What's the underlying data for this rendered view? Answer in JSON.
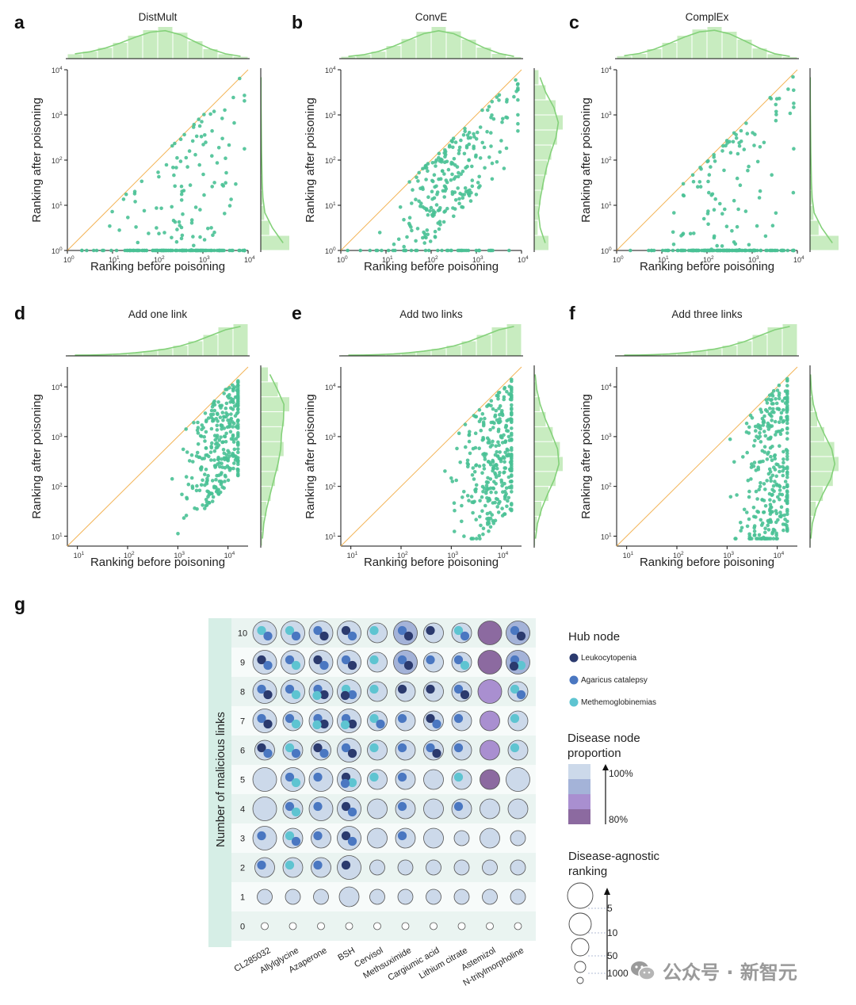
{
  "watermark": "公众号 · 新智元",
  "chart_data": [
    {
      "id": "a",
      "type": "scatter",
      "panel_letter": "a",
      "title": "DistMult",
      "xlabel": "Ranking before poisoning",
      "ylabel": "Ranking after poisoning",
      "xlim": [
        0,
        4
      ],
      "ylim": [
        0,
        4
      ],
      "log": true,
      "xticks": [
        "10",
        "10",
        "10",
        "10",
        "10"
      ],
      "xtick_exp": [
        "0",
        "1",
        "2",
        "3",
        "4"
      ],
      "yticks": [
        "10",
        "10",
        "10",
        "10",
        "10"
      ],
      "ytick_exp": [
        "0",
        "1",
        "2",
        "3",
        "4"
      ],
      "n_points": 230,
      "x_mean": 2.5,
      "x_sd": 0.75,
      "floor_fraction": 0.45,
      "max_gain": 3.0,
      "gain_exponent": 1.5,
      "top_histogram": [
        0.14,
        0.22,
        0.34,
        0.5,
        0.72,
        0.9,
        1.0,
        0.82,
        0.55,
        0.3,
        0.14,
        0.06
      ],
      "right_histogram": [
        1.0,
        0.3,
        0.12,
        0.07,
        0.05,
        0.04,
        0.03,
        0.02,
        0.02,
        0.01,
        0.01,
        0.01
      ]
    },
    {
      "id": "b",
      "type": "scatter",
      "panel_letter": "b",
      "title": "ConvE",
      "xlabel": "Ranking before poisoning",
      "ylabel": "Ranking after poisoning",
      "xlim": [
        0,
        4
      ],
      "ylim": [
        0,
        4
      ],
      "log": true,
      "xticks": [
        "10",
        "10",
        "10",
        "10",
        "10"
      ],
      "xtick_exp": [
        "0",
        "1",
        "2",
        "3",
        "4"
      ],
      "yticks": [
        "10",
        "10",
        "10",
        "10",
        "10"
      ],
      "ytick_exp": [
        "0",
        "1",
        "2",
        "3",
        "4"
      ],
      "n_points": 280,
      "x_mean": 2.4,
      "x_sd": 0.7,
      "floor_fraction": 0.12,
      "max_gain": 1.8,
      "gain_exponent": 1.0,
      "top_histogram": [
        0.06,
        0.12,
        0.22,
        0.4,
        0.62,
        0.85,
        1.0,
        0.86,
        0.6,
        0.35,
        0.15,
        0.05
      ],
      "right_histogram": [
        0.5,
        0.12,
        0.14,
        0.22,
        0.33,
        0.45,
        0.6,
        0.8,
        1.0,
        0.75,
        0.4,
        0.15
      ]
    },
    {
      "id": "c",
      "type": "scatter",
      "panel_letter": "c",
      "title": "ComplEx",
      "xlabel": "Ranking before poisoning",
      "ylabel": "Ranking after poisoning",
      "xlim": [
        0,
        4
      ],
      "ylim": [
        0,
        4
      ],
      "log": true,
      "xticks": [
        "10",
        "10",
        "10",
        "10",
        "10"
      ],
      "xtick_exp": [
        "0",
        "1",
        "2",
        "3",
        "4"
      ],
      "yticks": [
        "10",
        "10",
        "10",
        "10",
        "10"
      ],
      "ytick_exp": [
        "0",
        "1",
        "2",
        "3",
        "4"
      ],
      "n_points": 240,
      "x_mean": 2.5,
      "x_sd": 0.7,
      "floor_fraction": 0.5,
      "max_gain": 3.0,
      "gain_exponent": 1.6,
      "top_histogram": [
        0.08,
        0.15,
        0.3,
        0.5,
        0.72,
        0.92,
        1.0,
        0.85,
        0.6,
        0.32,
        0.14,
        0.05
      ],
      "right_histogram": [
        1.0,
        0.3,
        0.12,
        0.07,
        0.05,
        0.04,
        0.03,
        0.02,
        0.02,
        0.01,
        0.01,
        0.01
      ]
    },
    {
      "id": "d",
      "type": "scatter",
      "panel_letter": "d",
      "title": "Add one link",
      "xlabel": "Ranking before poisoning",
      "ylabel": "Ranking after poisoning",
      "xlim": [
        0.8,
        4.4
      ],
      "ylim": [
        0.8,
        4.4
      ],
      "log": true,
      "xticks": [
        "10",
        "10",
        "10",
        "10"
      ],
      "xtick_exp": [
        "1",
        "2",
        "3",
        "4"
      ],
      "yticks": [
        "10",
        "10",
        "10",
        "10"
      ],
      "ytick_exp": [
        "1",
        "2",
        "3",
        "4"
      ],
      "n_points": 320,
      "x_mean": 3.9,
      "x_sd": 0.35,
      "floor_fraction": 0,
      "max_gain": 2.0,
      "gain_exponent": 1.0,
      "top_histogram": [
        0.02,
        0.03,
        0.04,
        0.06,
        0.1,
        0.15,
        0.22,
        0.32,
        0.46,
        0.66,
        0.9,
        1.0
      ],
      "right_histogram": [
        0.05,
        0.1,
        0.2,
        0.35,
        0.5,
        0.62,
        0.8,
        0.72,
        0.82,
        1.0,
        0.6,
        0.25
      ]
    },
    {
      "id": "e",
      "type": "scatter",
      "panel_letter": "e",
      "title": "Add two links",
      "xlabel": "Ranking before poisoning",
      "ylabel": "Ranking after poisoning",
      "xlim": [
        0.8,
        4.4
      ],
      "ylim": [
        0.8,
        4.4
      ],
      "log": true,
      "xticks": [
        "10",
        "10",
        "10",
        "10"
      ],
      "xtick_exp": [
        "1",
        "2",
        "3",
        "4"
      ],
      "yticks": [
        "10",
        "10",
        "10",
        "10"
      ],
      "ytick_exp": [
        "1",
        "2",
        "3",
        "4"
      ],
      "n_points": 330,
      "x_mean": 3.9,
      "x_sd": 0.35,
      "floor_fraction": 0,
      "max_gain": 2.7,
      "gain_exponent": 1.0,
      "top_histogram": [
        0.02,
        0.03,
        0.04,
        0.06,
        0.1,
        0.15,
        0.22,
        0.32,
        0.46,
        0.66,
        0.9,
        1.0
      ],
      "right_histogram": [
        0.03,
        0.1,
        0.25,
        0.5,
        0.75,
        1.0,
        0.9,
        0.65,
        0.4,
        0.2,
        0.08,
        0.02
      ]
    },
    {
      "id": "f",
      "type": "scatter",
      "panel_letter": "f",
      "title": "Add three links",
      "xlabel": "Ranking before poisoning",
      "ylabel": "Ranking after poisoning",
      "xlim": [
        0.8,
        4.4
      ],
      "ylim": [
        0.8,
        4.4
      ],
      "log": true,
      "xticks": [
        "10",
        "10",
        "10",
        "10"
      ],
      "xtick_exp": [
        "1",
        "2",
        "3",
        "4"
      ],
      "yticks": [
        "10",
        "10",
        "10",
        "10"
      ],
      "ytick_exp": [
        "1",
        "2",
        "3",
        "4"
      ],
      "n_points": 330,
      "x_mean": 3.9,
      "x_sd": 0.35,
      "floor_fraction": 0,
      "max_gain": 3.1,
      "gain_exponent": 1.0,
      "top_histogram": [
        0.02,
        0.03,
        0.04,
        0.06,
        0.1,
        0.15,
        0.22,
        0.32,
        0.46,
        0.66,
        0.9,
        1.0
      ],
      "right_histogram": [
        0.02,
        0.06,
        0.2,
        0.45,
        0.8,
        1.0,
        0.85,
        0.5,
        0.25,
        0.1,
        0.04,
        0.01
      ]
    },
    {
      "id": "g",
      "type": "bubble_matrix",
      "panel_letter": "g",
      "ylabel": "Number of malicious links",
      "rows": [
        "10",
        "9",
        "8",
        "7",
        "6",
        "5",
        "4",
        "3",
        "2",
        "1",
        "0"
      ],
      "columns": [
        "CL285032",
        "Allylglycine",
        "Azaperone",
        "BSH",
        "Cervisol",
        "Methsuximide",
        "Cargiumic acid",
        "Lithium citrate",
        "Astemizol",
        "N-tritylmorpholine"
      ],
      "size_grid": [
        [
          4,
          4,
          4,
          4,
          3,
          4,
          3,
          3,
          4,
          4
        ],
        [
          4,
          4,
          4,
          4,
          3,
          4,
          3,
          3,
          4,
          4
        ],
        [
          4,
          4,
          4,
          4,
          3,
          3,
          3,
          3,
          4,
          3
        ],
        [
          4,
          3,
          4,
          4,
          3,
          3,
          3,
          3,
          3,
          3
        ],
        [
          3,
          3,
          3,
          4,
          3,
          3,
          3,
          3,
          3,
          3
        ],
        [
          4,
          4,
          4,
          4,
          3,
          3,
          3,
          3,
          3,
          4
        ],
        [
          4,
          3,
          4,
          4,
          3,
          3,
          3,
          3,
          3,
          3
        ],
        [
          4,
          3,
          3,
          4,
          3,
          3,
          3,
          2,
          3,
          2
        ],
        [
          3,
          3,
          3,
          4,
          2,
          2,
          2,
          2,
          2,
          2
        ],
        [
          2,
          2,
          2,
          3,
          2,
          2,
          2,
          2,
          2,
          2
        ],
        [
          0,
          0,
          0,
          0,
          0,
          0,
          0,
          0,
          0,
          0
        ]
      ],
      "proportion_grid": [
        [
          0,
          0,
          0,
          0,
          0,
          1,
          0,
          0,
          3,
          1
        ],
        [
          0,
          0,
          0,
          0,
          0,
          1,
          0,
          0,
          3,
          1
        ],
        [
          0,
          0,
          0,
          0,
          0,
          0,
          0,
          0,
          2,
          0
        ],
        [
          0,
          0,
          0,
          0,
          0,
          0,
          0,
          0,
          2,
          0
        ],
        [
          0,
          0,
          0,
          0,
          0,
          0,
          0,
          0,
          2,
          0
        ],
        [
          0,
          0,
          0,
          0,
          0,
          0,
          0,
          0,
          3,
          0
        ],
        [
          0,
          0,
          0,
          0,
          0,
          0,
          0,
          0,
          0,
          0
        ],
        [
          0,
          0,
          0,
          0,
          0,
          0,
          0,
          0,
          0,
          0
        ],
        [
          0,
          0,
          0,
          0,
          0,
          0,
          0,
          0,
          0,
          0
        ],
        [
          0,
          0,
          0,
          0,
          0,
          0,
          0,
          0,
          0,
          0
        ],
        [
          0,
          0,
          0,
          0,
          0,
          0,
          0,
          0,
          0,
          0
        ]
      ],
      "hub_grid": [
        [
          "MA",
          "MA",
          "AL",
          "LA",
          "M",
          "AL",
          "L",
          "MA",
          "",
          "AL"
        ],
        [
          "LA",
          "AM",
          "LA",
          "AL",
          "M",
          "AL",
          "A",
          "AM",
          "",
          "AML"
        ],
        [
          "AL",
          "AM",
          "ALM",
          "MAL",
          "M",
          "L",
          "L",
          "AL",
          "",
          "MA"
        ],
        [
          "AL",
          "AM",
          "ALM",
          "ALM",
          "MA",
          "A",
          "LA",
          "A",
          "",
          "M"
        ],
        [
          "LA",
          "MA",
          "LA",
          "AL",
          "M",
          "A",
          "AL",
          "A",
          "",
          "M"
        ],
        [
          "",
          "AM",
          "A",
          "LMA",
          "M",
          "A",
          "",
          "M",
          "",
          ""
        ],
        [
          "",
          "AM",
          "A",
          "LA",
          "",
          "A",
          "",
          "A",
          "",
          ""
        ],
        [
          "A",
          "MA",
          "A",
          "LA",
          "",
          "A",
          "",
          "",
          "",
          ""
        ],
        [
          "A",
          "M",
          "A",
          "L",
          "",
          "",
          "",
          "",
          "",
          ""
        ],
        [
          "",
          "",
          "",
          "",
          "",
          "",
          "",
          "",
          "",
          ""
        ],
        [
          "",
          "",
          "",
          "",
          "",
          "",
          "",
          "",
          "",
          ""
        ]
      ],
      "hub_legend": {
        "title": "Hub node",
        "items": [
          {
            "label": "Leukocytopenia",
            "color": "#2b3a6e"
          },
          {
            "label": "Agaricus catalepsy",
            "color": "#4a77c1"
          },
          {
            "label": "Methemoglobinemias",
            "color": "#5ec4d1"
          }
        ]
      },
      "proportion_legend": {
        "title_line1": "Disease node",
        "title_line2": "proportion",
        "labels": [
          "100%",
          "80%"
        ],
        "colors": [
          "#ccd9ea",
          "#a4b3d8",
          "#a98fd0",
          "#8c6aa0"
        ]
      },
      "ranking_legend": {
        "title_line1": "Disease-agnostic",
        "title_line2": "ranking",
        "labels": [
          "5",
          "10",
          "50",
          "1000"
        ]
      },
      "ring_color": "#555555",
      "row_band_colors": [
        "#eaf4f1",
        "#f7fbfa"
      ],
      "axis_band_color": "#d6eee6"
    }
  ],
  "colors": {
    "point": "#49c195",
    "diagonal": "#f3b457",
    "hist_fill": "#c8ecc0",
    "hist_line": "#84d17a",
    "axis": "#111111"
  }
}
